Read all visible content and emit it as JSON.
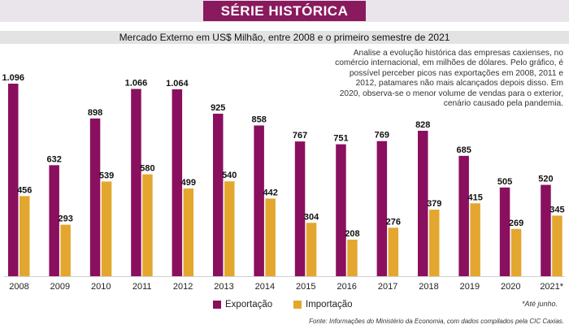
{
  "banner": {
    "title": "SÉRIE HISTÓRICA"
  },
  "subtitle": "Mercado Externo em US$ Milhão, entre 2008 e o primeiro semestre de 2021",
  "description": "Analise a evolução histórica das empresas caxienses, no comércio internacional, em milhões de dólares. Pelo gráfico, é possível perceber picos nas exportações em 2008, 2011 e 2012, patamares não mais alcançados depois disso. Em 2020, observa-se o menor volume de vendas para o exterior, cenário causado pela pandemia.",
  "legend": {
    "export_label": "Exportação",
    "import_label": "Importação"
  },
  "note": "*Até junho.",
  "source": "Fonte: Informações do Ministério da Economia, com dados compilados pela CIC Caxias.",
  "colors": {
    "export": "#8a0f5f",
    "import": "#e3a72f",
    "banner": "#8a1a5e"
  },
  "chart_data": {
    "type": "bar",
    "categories": [
      "2008",
      "2009",
      "2010",
      "2011",
      "2012",
      "2013",
      "2014",
      "2015",
      "2016",
      "2017",
      "2018",
      "2019",
      "2020",
      "2021*"
    ],
    "series": [
      {
        "name": "Exportação",
        "values": [
          1096,
          632,
          898,
          1066,
          1064,
          925,
          858,
          767,
          751,
          769,
          828,
          685,
          505,
          520
        ],
        "labels": [
          "1.096",
          "632",
          "898",
          "1.066",
          "1.064",
          "925",
          "858",
          "767",
          "751",
          "769",
          "828",
          "685",
          "505",
          "520"
        ]
      },
      {
        "name": "Importação",
        "values": [
          456,
          293,
          539,
          580,
          499,
          540,
          442,
          304,
          208,
          276,
          379,
          415,
          269,
          345
        ],
        "labels": [
          "456",
          "293",
          "539",
          "580",
          "499",
          "540",
          "442",
          "304",
          "208",
          "276",
          "379",
          "415",
          "269",
          "345"
        ]
      }
    ],
    "ylim": [
      0,
      1096
    ],
    "grid": false,
    "legend_position": "bottom-left"
  }
}
